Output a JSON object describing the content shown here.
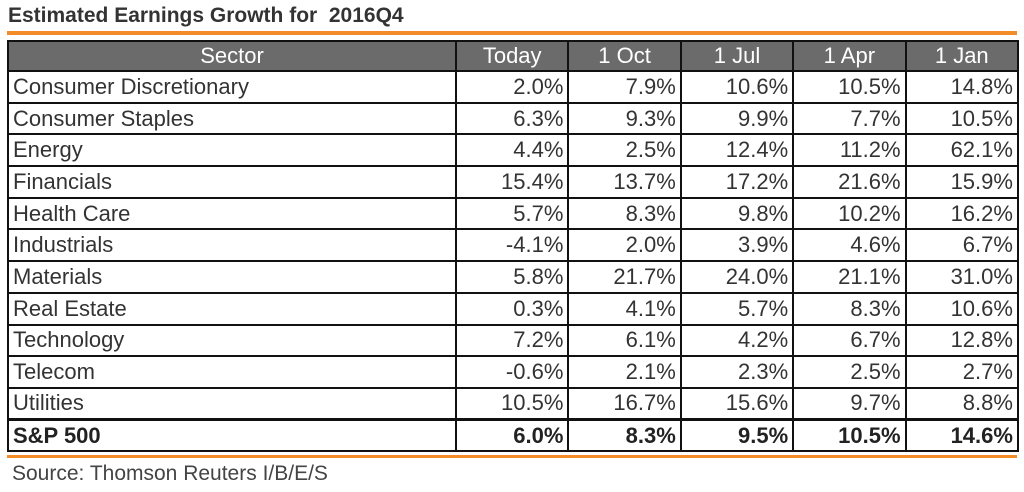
{
  "colors": {
    "accent_rule": "#f28c28",
    "header_bg": "#6b6b6b",
    "header_text": "#ffffff",
    "grid": "#111111",
    "text": "#333333"
  },
  "chart_data": {
    "type": "table",
    "title": "Estimated Earnings Growth for  2016Q4",
    "columns": [
      "Sector",
      "Today",
      "1 Oct",
      "1 Jul",
      "1 Apr",
      "1 Jan"
    ],
    "rows": [
      {
        "sector": "Consumer Discretionary",
        "values": [
          "2.0%",
          "7.9%",
          "10.6%",
          "10.5%",
          "14.8%"
        ]
      },
      {
        "sector": "Consumer Staples",
        "values": [
          "6.3%",
          "9.3%",
          "9.9%",
          "7.7%",
          "10.5%"
        ]
      },
      {
        "sector": "Energy",
        "values": [
          "4.4%",
          "2.5%",
          "12.4%",
          "11.2%",
          "62.1%"
        ]
      },
      {
        "sector": "Financials",
        "values": [
          "15.4%",
          "13.7%",
          "17.2%",
          "21.6%",
          "15.9%"
        ]
      },
      {
        "sector": "Health Care",
        "values": [
          "5.7%",
          "8.3%",
          "9.8%",
          "10.2%",
          "16.2%"
        ]
      },
      {
        "sector": "Industrials",
        "values": [
          "-4.1%",
          "2.0%",
          "3.9%",
          "4.6%",
          "6.7%"
        ]
      },
      {
        "sector": "Materials",
        "values": [
          "5.8%",
          "21.7%",
          "24.0%",
          "21.1%",
          "31.0%"
        ]
      },
      {
        "sector": "Real Estate",
        "values": [
          "0.3%",
          "4.1%",
          "5.7%",
          "8.3%",
          "10.6%"
        ]
      },
      {
        "sector": "Technology",
        "values": [
          "7.2%",
          "6.1%",
          "4.2%",
          "6.7%",
          "12.8%"
        ]
      },
      {
        "sector": "Telecom",
        "values": [
          "-0.6%",
          "2.1%",
          "2.3%",
          "2.5%",
          "2.7%"
        ]
      },
      {
        "sector": "Utilities",
        "values": [
          "10.5%",
          "16.7%",
          "15.6%",
          "9.7%",
          "8.8%"
        ]
      }
    ],
    "total": {
      "sector": "S&P 500",
      "values": [
        "6.0%",
        "8.3%",
        "9.5%",
        "10.5%",
        "14.6%"
      ]
    },
    "source": "Source: Thomson Reuters I/B/E/S"
  }
}
